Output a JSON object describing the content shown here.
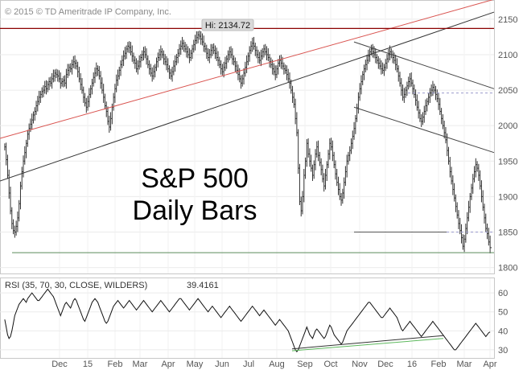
{
  "chart_data": [
    {
      "type": "bar",
      "title": "S&P 500",
      "subtitle": "Daily Bars",
      "copyright": "© 2015 © TD Ameritrade IP Company, Inc.",
      "hi_label": "Hi: 2134.72",
      "hi_value": 2134.72,
      "ylim": [
        1795,
        2168
      ],
      "yticks": [
        1800,
        1850,
        1900,
        1950,
        2000,
        2050,
        2100,
        2150
      ],
      "x_month_labels": [
        "Dec",
        "15",
        "Feb",
        "Mar",
        "Apr",
        "May",
        "Jun",
        "Jul",
        "Aug",
        "Sep",
        "Oct",
        "Nov",
        "Dec",
        "16",
        "Feb",
        "Mar",
        "Apr"
      ],
      "reference_levels": [
        2137,
        2046,
        1850,
        1821
      ],
      "close_series": [
        1970,
        1952,
        1930,
        1905,
        1880,
        1862,
        1852,
        1850,
        1858,
        1870,
        1890,
        1915,
        1935,
        1950,
        1962,
        1975,
        1988,
        1996,
        2002,
        2008,
        2015,
        2020,
        2028,
        2034,
        2040,
        2044,
        2048,
        2050,
        2055,
        2052,
        2058,
        2062,
        2060,
        2066,
        2070,
        2074,
        2072,
        2070,
        2066,
        2060,
        2062,
        2064,
        2060,
        2072,
        2078,
        2082,
        2080,
        2086,
        2090,
        2088,
        2084,
        2076,
        2066,
        2058,
        2050,
        2040,
        2032,
        2026,
        2034,
        2044,
        2052,
        2060,
        2068,
        2074,
        2080,
        2078,
        2070,
        2060,
        2050,
        2040,
        2028,
        2020,
        2006,
        1998,
        2010,
        2026,
        2040,
        2052,
        2064,
        2070,
        2078,
        2086,
        2092,
        2098,
        2102,
        2108,
        2112,
        2110,
        2104,
        2098,
        2092,
        2088,
        2080,
        2084,
        2090,
        2096,
        2100,
        2104,
        2100,
        2094,
        2086,
        2080,
        2074,
        2070,
        2076,
        2082,
        2090,
        2096,
        2100,
        2104,
        2100,
        2094,
        2090,
        2086,
        2080,
        2074,
        2070,
        2076,
        2084,
        2090,
        2096,
        2102,
        2108,
        2112,
        2116,
        2112,
        2108,
        2104,
        2100,
        2096,
        2102,
        2108,
        2114,
        2120,
        2124,
        2128,
        2126,
        2122,
        2118,
        2112,
        2108,
        2102,
        2096,
        2100,
        2106,
        2110,
        2106,
        2102,
        2096,
        2092,
        2086,
        2080,
        2076,
        2082,
        2088,
        2094,
        2100,
        2104,
        2100,
        2094,
        2090,
        2084,
        2078,
        2072,
        2066,
        2060,
        2066,
        2074,
        2082,
        2090,
        2098,
        2106,
        2112,
        2116,
        2112,
        2106,
        2100,
        2096,
        2092,
        2098,
        2104,
        2108,
        2104,
        2100,
        2096,
        2090,
        2086,
        2080,
        2076,
        2072,
        2080,
        2088,
        2092,
        2088,
        2084,
        2080,
        2078,
        2072,
        2066,
        2060,
        2050,
        2040,
        2030,
        2010,
        1990,
        1940,
        1893,
        1880,
        1900,
        1930,
        1950,
        1975,
        1960,
        1950,
        1940,
        1930,
        1945,
        1960,
        1970,
        1958,
        1948,
        1938,
        1925,
        1915,
        1930,
        1945,
        1960,
        1975,
        1970,
        1958,
        1945,
        1932,
        1920,
        1910,
        1900,
        1895,
        1905,
        1920,
        1935,
        1950,
        1958,
        1965,
        1975,
        1985,
        1996,
        2010,
        2025,
        2040,
        2052,
        2062,
        2072,
        2080,
        2086,
        2092,
        2098,
        2104,
        2108,
        2104,
        2100,
        2096,
        2092,
        2088,
        2084,
        2080,
        2078,
        2082,
        2088,
        2094,
        2100,
        2104,
        2100,
        2096,
        2092,
        2086,
        2080,
        2070,
        2060,
        2050,
        2040,
        2044,
        2050,
        2056,
        2062,
        2066,
        2060,
        2052,
        2044,
        2036,
        2026,
        2018,
        2010,
        2006,
        2012,
        2020,
        2028,
        2034,
        2040,
        2046,
        2050,
        2054,
        2050,
        2044,
        2038,
        2030,
        2020,
        2010,
        2000,
        1990,
        1980,
        1965,
        1950,
        1935,
        1922,
        1910,
        1898,
        1886,
        1874,
        1862,
        1852,
        1842,
        1830,
        1840,
        1855,
        1870,
        1885,
        1900,
        1912,
        1925,
        1935,
        1945,
        1940,
        1930,
        1915,
        1900,
        1885,
        1870,
        1855,
        1848,
        1836,
        1828
      ]
    },
    {
      "type": "line",
      "title": "RSI (35, 70, 30, CLOSE, WILDERS)",
      "last_value_label": "39.4161",
      "ylim": [
        27,
        66
      ],
      "yticks": [
        30,
        40,
        50,
        60
      ],
      "values": [
        46,
        42,
        38,
        36,
        37,
        40,
        44,
        48,
        50,
        52,
        54,
        55,
        56,
        57,
        56,
        55,
        57,
        58,
        59,
        60,
        59,
        58,
        57,
        56,
        56,
        57,
        58,
        59,
        60,
        61,
        62,
        61,
        60,
        59,
        58,
        56,
        54,
        52,
        50,
        48,
        50,
        52,
        54,
        55,
        54,
        53,
        52,
        54,
        56,
        57,
        56,
        54,
        52,
        50,
        48,
        46,
        45,
        47,
        49,
        51,
        53,
        55,
        56,
        57,
        56,
        55,
        53,
        51,
        49,
        47,
        45,
        44,
        45,
        47,
        49,
        51,
        53,
        54,
        55,
        56,
        55,
        54,
        53,
        52,
        53,
        54,
        55,
        56,
        55,
        54,
        53,
        52,
        51,
        52,
        53,
        54,
        55,
        56,
        55,
        54,
        53,
        52,
        51,
        50,
        51,
        52,
        53,
        54,
        55,
        56,
        55,
        54,
        53,
        52,
        51,
        50,
        51,
        52,
        53,
        54,
        55,
        56,
        57,
        57,
        56,
        55,
        54,
        53,
        52,
        51,
        52,
        53,
        54,
        55,
        56,
        57,
        56,
        55,
        54,
        53,
        52,
        51,
        50,
        51,
        52,
        53,
        52,
        51,
        50,
        49,
        48,
        47,
        48,
        49,
        50,
        51,
        52,
        53,
        52,
        51,
        50,
        49,
        48,
        47,
        46,
        45,
        46,
        47,
        48,
        49,
        50,
        51,
        52,
        53,
        52,
        51,
        50,
        49,
        48,
        49,
        50,
        51,
        50,
        49,
        48,
        47,
        46,
        45,
        44,
        43,
        44,
        45,
        46,
        45,
        44,
        43,
        42,
        41,
        40,
        38,
        36,
        34,
        32,
        30,
        29,
        30,
        32,
        34,
        36,
        38,
        40,
        42,
        40,
        38,
        37,
        36,
        38,
        40,
        41,
        40,
        39,
        38,
        37,
        36,
        37,
        39,
        41,
        43,
        42,
        40,
        38,
        37,
        36,
        35,
        34,
        33,
        34,
        36,
        38,
        40,
        41,
        42,
        43,
        44,
        45,
        46,
        47,
        48,
        49,
        50,
        51,
        52,
        53,
        54,
        55,
        55,
        54,
        53,
        52,
        51,
        50,
        49,
        48,
        47,
        47,
        48,
        49,
        50,
        51,
        52,
        51,
        50,
        49,
        48,
        47,
        45,
        43,
        41,
        40,
        41,
        42,
        43,
        44,
        45,
        44,
        43,
        42,
        41,
        40,
        39,
        38,
        37,
        38,
        39,
        40,
        41,
        42,
        43,
        44,
        45,
        44,
        43,
        42,
        41,
        40,
        39,
        38,
        37,
        36,
        35,
        34,
        33,
        32,
        31,
        30,
        30,
        31,
        32,
        33,
        34,
        35,
        36,
        37,
        38,
        39,
        40,
        41,
        42,
        43,
        44,
        43,
        42,
        41,
        40,
        39,
        38,
        37,
        38,
        39,
        39.4161
      ]
    }
  ]
}
